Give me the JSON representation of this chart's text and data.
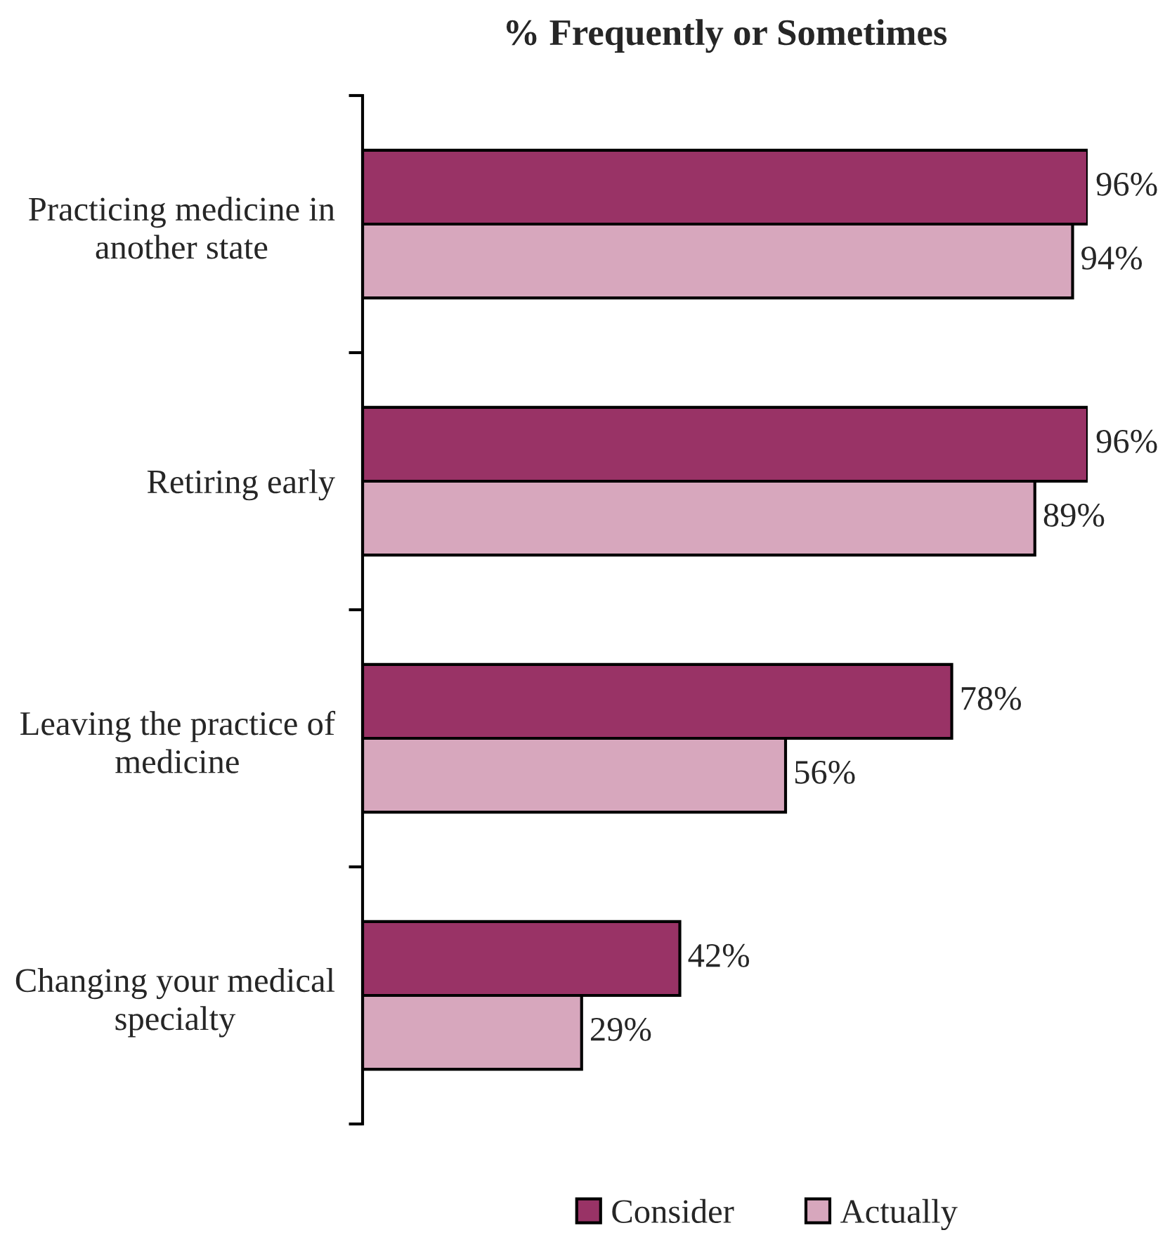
{
  "chart_data": {
    "type": "bar",
    "orientation": "horizontal",
    "title": "% Frequently or Sometimes",
    "categories": [
      "Practicing medicine in another state",
      "Retiring early",
      "Leaving the practice of medicine",
      "Changing your medical specialty"
    ],
    "series": [
      {
        "name": "Consider",
        "color": "#993366",
        "values": [
          96,
          96,
          78,
          42
        ],
        "value_labels": [
          "96%",
          "96%",
          "78%",
          "42%"
        ]
      },
      {
        "name": "Actually",
        "color": "#d7a7bd",
        "values": [
          94,
          89,
          56,
          29
        ],
        "value_labels": [
          "94%",
          "89%",
          "56%",
          "29%"
        ]
      }
    ],
    "tick_labels": "y",
    "legend": "bottom",
    "grid": false
  }
}
